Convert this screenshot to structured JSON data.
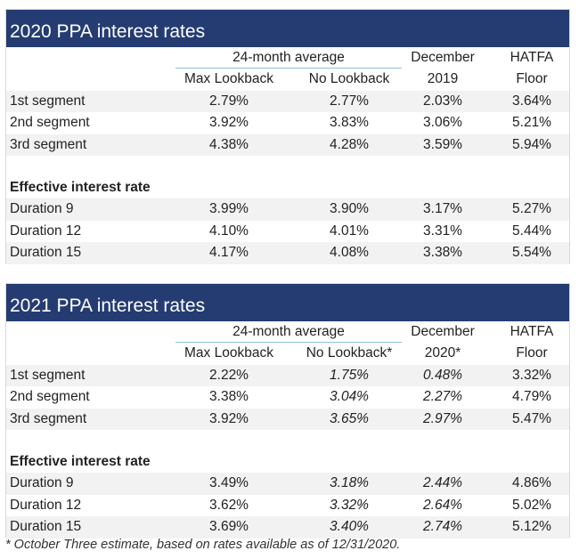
{
  "tables": [
    {
      "title": "2020 PPA interest rates",
      "header": {
        "group": "24-month average",
        "col1": "Max Lookback",
        "col2": "No Lookback",
        "col3_line1": "December",
        "col3_line2": "2019",
        "col4_line1": "HATFA",
        "col4_line2": "Floor"
      },
      "segments": [
        {
          "label": "1st segment",
          "values": [
            "2.79%",
            "2.77%",
            "2.03%",
            "3.64%"
          ]
        },
        {
          "label": "2nd segment",
          "values": [
            "3.92%",
            "3.83%",
            "3.06%",
            "5.21%"
          ]
        },
        {
          "label": "3rd segment",
          "values": [
            "4.38%",
            "4.28%",
            "3.59%",
            "5.94%"
          ]
        }
      ],
      "section_label": "Effective interest rate",
      "durations": [
        {
          "label": "Duration 9",
          "values": [
            "3.99%",
            "3.90%",
            "3.17%",
            "5.27%"
          ]
        },
        {
          "label": "Duration 12",
          "values": [
            "4.10%",
            "4.01%",
            "3.31%",
            "5.44%"
          ]
        },
        {
          "label": "Duration 15",
          "values": [
            "4.17%",
            "4.08%",
            "3.38%",
            "5.54%"
          ]
        }
      ]
    },
    {
      "title": "2021 PPA interest rates",
      "header": {
        "group": "24-month average",
        "col1": "Max Lookback",
        "col2": "No Lookback*",
        "col3_line1": "December",
        "col3_line2": "2020*",
        "col4_line1": "HATFA",
        "col4_line2": "Floor"
      },
      "segments": [
        {
          "label": "1st segment",
          "values": [
            "2.22%",
            "1.75%",
            "0.48%",
            "3.32%"
          ]
        },
        {
          "label": "2nd segment",
          "values": [
            "3.38%",
            "3.04%",
            "2.27%",
            "4.79%"
          ]
        },
        {
          "label": "3rd segment",
          "values": [
            "3.92%",
            "3.65%",
            "2.97%",
            "5.47%"
          ]
        }
      ],
      "section_label": "Effective interest rate",
      "durations": [
        {
          "label": "Duration 9",
          "values": [
            "3.49%",
            "3.18%",
            "2.44%",
            "4.86%"
          ]
        },
        {
          "label": "Duration 12",
          "values": [
            "3.62%",
            "3.32%",
            "2.64%",
            "5.02%"
          ]
        },
        {
          "label": "Duration 15",
          "values": [
            "3.69%",
            "3.40%",
            "2.74%",
            "5.12%"
          ]
        }
      ]
    }
  ],
  "footnote": "* October Three estimate, based on rates available as of 12/31/2020."
}
